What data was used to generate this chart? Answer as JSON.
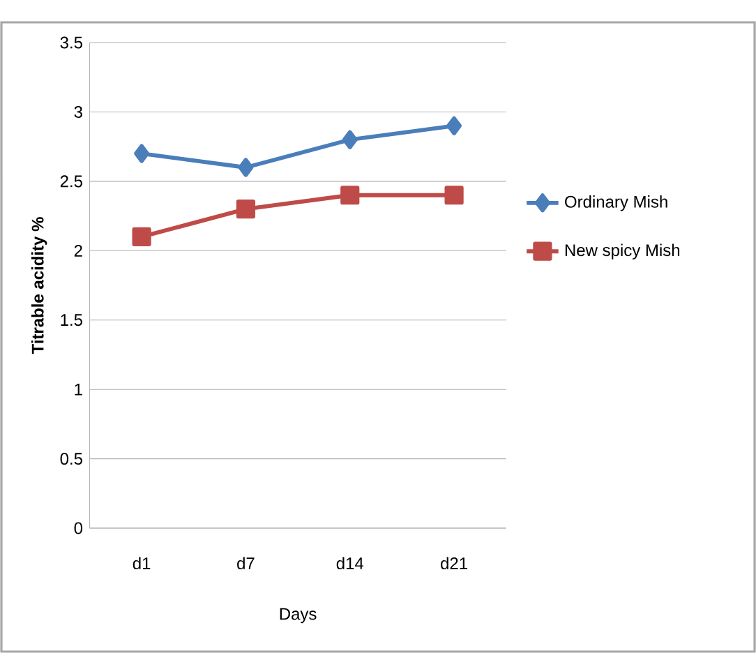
{
  "chart_data": {
    "type": "line",
    "xlabel": "Days",
    "ylabel": "Titrable acidity %",
    "categories": [
      "d1",
      "d7",
      "d14",
      "d21"
    ],
    "series": [
      {
        "name": "Ordinary Mish",
        "color": "#4a7ebb",
        "marker": "diamond",
        "values": [
          2.7,
          2.6,
          2.8,
          2.9
        ]
      },
      {
        "name": "New spicy Mish",
        "color": "#be4b48",
        "marker": "square",
        "values": [
          2.1,
          2.3,
          2.4,
          2.4
        ]
      }
    ],
    "ylim": [
      0,
      3.5
    ],
    "yticks": [
      0,
      0.5,
      1,
      1.5,
      2,
      2.5,
      3,
      3.5
    ],
    "grid": "y",
    "legend": "right",
    "line_style": "solid"
  }
}
